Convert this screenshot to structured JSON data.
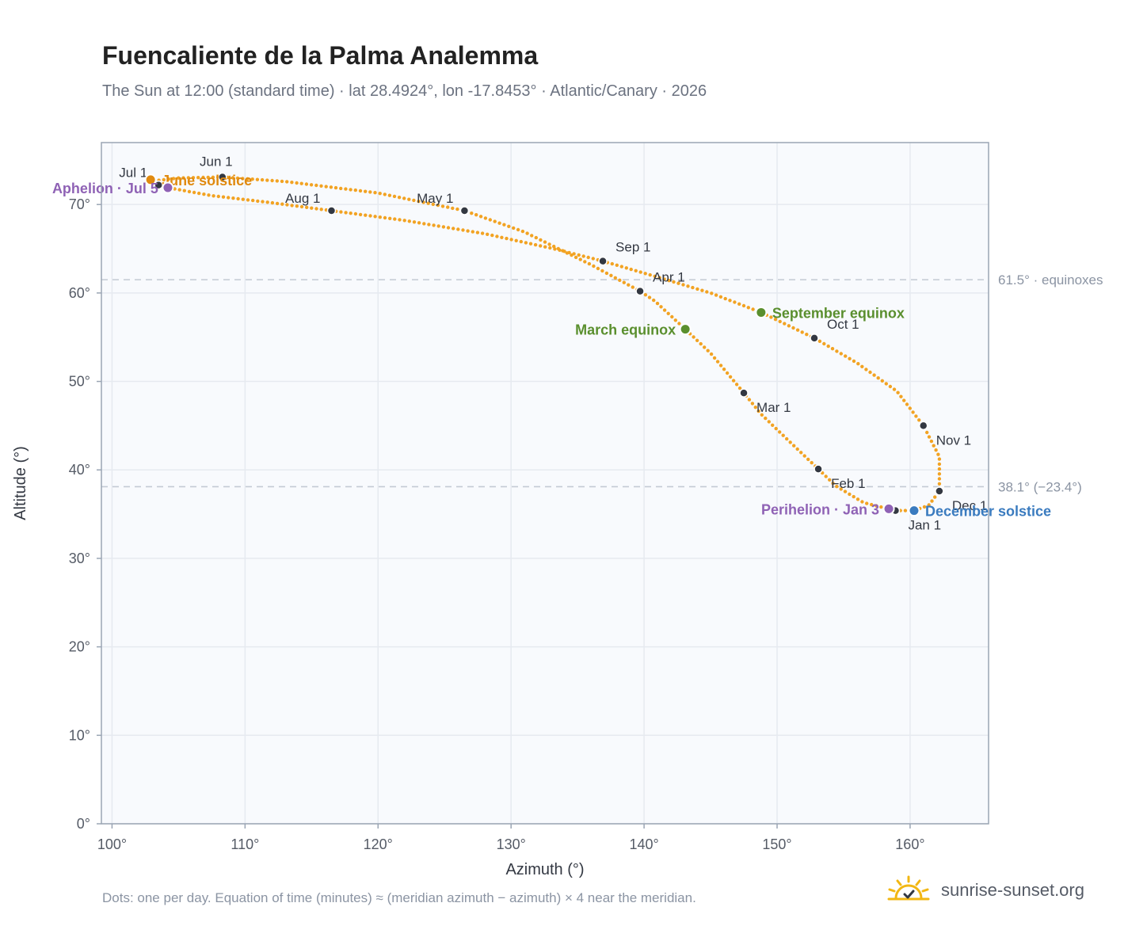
{
  "title": "Fuencaliente de la Palma Analemma",
  "subtitle": "The Sun at 12:00 (standard time) · lat 28.4924°, lon -17.8453° · Atlantic/Canary · 2026",
  "footnote": "Dots: one per day. Equation of time (minutes) ≈ (meridian azimuth − azimuth) × 4 near the meridian.",
  "brand": {
    "name": "sunrise-sunset.org",
    "icon": "sun-icon",
    "color": "#f2b713"
  },
  "colors": {
    "curve": "#f2a323",
    "month_dot": "#333842",
    "equinox": "#5a8f2e",
    "solstice_june": "#e08a10",
    "solstice_december": "#3a7bbf",
    "apsis": "#8f62b5",
    "grid": "#e6eaf0",
    "plot_bg": "#f8fafd",
    "frame": "#9aa5b4",
    "ref_line": "#c3cad4"
  },
  "chart_data": {
    "type": "scatter",
    "title": "Fuencaliente de la Palma Analemma",
    "xlabel": "Azimuth (°)",
    "ylabel": "Altitude (°)",
    "xlim": [
      99.2,
      165.9
    ],
    "ylim": [
      0,
      77
    ],
    "x_ticks": [
      100,
      110,
      120,
      130,
      140,
      150,
      160
    ],
    "x_tick_labels": [
      "100°",
      "110°",
      "120°",
      "130°",
      "140°",
      "150°",
      "160°"
    ],
    "y_ticks": [
      0,
      10,
      20,
      30,
      40,
      50,
      60,
      70
    ],
    "y_tick_labels": [
      "0°",
      "10°",
      "20°",
      "30°",
      "40°",
      "50°",
      "60°",
      "70°"
    ],
    "grid": true,
    "reference_lines": [
      {
        "y": 61.5,
        "label": "61.5° · equinoxes"
      },
      {
        "y": 38.1,
        "label": "38.1° (−23.4°)"
      }
    ],
    "path_points": [
      {
        "az": 158.9,
        "alt": 35.4
      },
      {
        "az": 156.5,
        "alt": 36.3
      },
      {
        "az": 154.4,
        "alt": 38.2
      },
      {
        "az": 153.1,
        "alt": 40.1
      },
      {
        "az": 150.8,
        "alt": 43.4
      },
      {
        "az": 148.8,
        "alt": 46.3
      },
      {
        "az": 147.5,
        "alt": 48.7
      },
      {
        "az": 145.0,
        "alt": 53.2
      },
      {
        "az": 143.1,
        "alt": 55.9
      },
      {
        "az": 140.8,
        "alt": 59.1
      },
      {
        "az": 139.7,
        "alt": 60.2
      },
      {
        "az": 136.0,
        "alt": 63.2
      },
      {
        "az": 131.0,
        "alt": 66.9
      },
      {
        "az": 126.5,
        "alt": 69.3
      },
      {
        "az": 120.0,
        "alt": 71.3
      },
      {
        "az": 113.0,
        "alt": 72.6
      },
      {
        "az": 108.3,
        "alt": 73.1
      },
      {
        "az": 105.0,
        "alt": 73.0
      },
      {
        "az": 103.3,
        "alt": 72.7
      },
      {
        "az": 102.9,
        "alt": 72.8
      },
      {
        "az": 103.5,
        "alt": 72.2
      },
      {
        "az": 104.2,
        "alt": 71.9
      },
      {
        "az": 107.5,
        "alt": 71.0
      },
      {
        "az": 112.0,
        "alt": 70.2
      },
      {
        "az": 116.5,
        "alt": 69.3
      },
      {
        "az": 122.0,
        "alt": 68.2
      },
      {
        "az": 128.0,
        "alt": 66.7
      },
      {
        "az": 133.5,
        "alt": 64.9
      },
      {
        "az": 136.9,
        "alt": 63.6
      },
      {
        "az": 141.0,
        "alt": 61.8
      },
      {
        "az": 145.0,
        "alt": 60.0
      },
      {
        "az": 148.8,
        "alt": 57.8
      },
      {
        "az": 152.8,
        "alt": 54.9
      },
      {
        "az": 156.0,
        "alt": 52.1
      },
      {
        "az": 159.0,
        "alt": 48.9
      },
      {
        "az": 161.0,
        "alt": 45.0
      },
      {
        "az": 162.2,
        "alt": 41.5
      },
      {
        "az": 162.2,
        "alt": 37.6
      },
      {
        "az": 161.4,
        "alt": 36.0
      },
      {
        "az": 160.3,
        "alt": 35.4
      },
      {
        "az": 158.9,
        "alt": 35.4
      }
    ],
    "month_markers": [
      {
        "label": "Jan 1",
        "az": 158.9,
        "alt": 35.4,
        "label_pos": "below-right"
      },
      {
        "label": "Feb 1",
        "az": 153.1,
        "alt": 40.1,
        "label_pos": "below-right"
      },
      {
        "label": "Mar 1",
        "az": 147.5,
        "alt": 48.7,
        "label_pos": "below-right"
      },
      {
        "label": "Apr 1",
        "az": 139.7,
        "alt": 60.2,
        "label_pos": "above-right"
      },
      {
        "label": "May 1",
        "az": 126.5,
        "alt": 69.3,
        "label_pos": "above-left"
      },
      {
        "label": "Jun 1",
        "az": 108.3,
        "alt": 73.1,
        "label_pos": "above"
      },
      {
        "label": "Jul 1",
        "az": 103.5,
        "alt": 72.2,
        "label_pos": "above-left"
      },
      {
        "label": "Aug 1",
        "az": 116.5,
        "alt": 69.3,
        "label_pos": "above-left"
      },
      {
        "label": "Sep 1",
        "az": 136.9,
        "alt": 63.6,
        "label_pos": "above-right"
      },
      {
        "label": "Oct 1",
        "az": 152.8,
        "alt": 54.9,
        "label_pos": "above-right"
      },
      {
        "label": "Nov 1",
        "az": 161.0,
        "alt": 45.0,
        "label_pos": "below-right"
      },
      {
        "label": "Dec 1",
        "az": 162.2,
        "alt": 37.6,
        "label_pos": "below-right"
      }
    ],
    "events": [
      {
        "label": "March equinox",
        "az": 143.1,
        "alt": 55.9,
        "color_key": "equinox",
        "label_side": "left"
      },
      {
        "label": "September equinox",
        "az": 148.8,
        "alt": 57.8,
        "color_key": "equinox",
        "label_side": "right"
      },
      {
        "label": "June solstice",
        "az": 102.9,
        "alt": 72.8,
        "color_key": "solstice_june",
        "label_side": "right"
      },
      {
        "label": "December solstice",
        "az": 160.3,
        "alt": 35.4,
        "color_key": "solstice_december",
        "label_side": "right"
      },
      {
        "label": "Aphelion · Jul 5",
        "az": 104.2,
        "alt": 71.9,
        "color_key": "apsis",
        "label_side": "left"
      },
      {
        "label": "Perihelion · Jan 3",
        "az": 158.4,
        "alt": 35.6,
        "color_key": "apsis",
        "label_side": "left"
      }
    ]
  }
}
